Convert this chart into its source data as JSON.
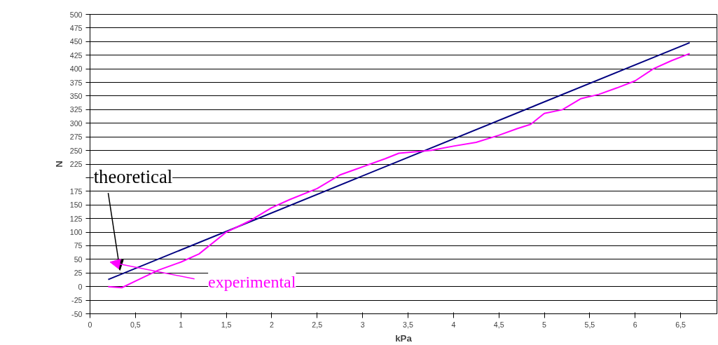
{
  "chart_data": {
    "type": "line",
    "xlabel": "kPa",
    "ylabel": "N",
    "xlim": [
      0,
      6.9
    ],
    "xticks": [
      {
        "value": 0,
        "label": "0"
      },
      {
        "value": 0.5,
        "label": "0,5"
      },
      {
        "value": 1,
        "label": "1"
      },
      {
        "value": 1.5,
        "label": "1,5"
      },
      {
        "value": 2,
        "label": "2"
      },
      {
        "value": 2.5,
        "label": "2,5"
      },
      {
        "value": 3,
        "label": "3"
      },
      {
        "value": 3.5,
        "label": "3,5"
      },
      {
        "value": 4,
        "label": "4"
      },
      {
        "value": 4.5,
        "label": "4,5"
      },
      {
        "value": 5,
        "label": "5"
      },
      {
        "value": 5.5,
        "label": "5,5"
      },
      {
        "value": 6,
        "label": "6"
      },
      {
        "value": 6.5,
        "label": "6,5"
      }
    ],
    "ylim": [
      -50,
      500
    ],
    "yticks": [
      -50,
      -25,
      0,
      25,
      50,
      75,
      100,
      125,
      150,
      175,
      {
        "value": 200,
        "label": null
      },
      225,
      250,
      275,
      300,
      325,
      350,
      375,
      400,
      425,
      450,
      475,
      500
    ],
    "grid": "y",
    "series": [
      {
        "color": "#000080",
        "x": [
          0.2,
          6.6
        ],
        "values": [
          13,
          448
        ]
      },
      {
        "color": "#ff00ff",
        "x": [
          0.2,
          0.35,
          0.5,
          0.75,
          1,
          1.2,
          1.5,
          1.75,
          2,
          2.2,
          2.5,
          2.75,
          3,
          3.25,
          3.4,
          3.75,
          4,
          4.25,
          4.5,
          4.7,
          4.85,
          5,
          5.2,
          5.4,
          5.6,
          5.8,
          6,
          6.2,
          6.4,
          6.6
        ],
        "values": [
          0,
          -2,
          10,
          30,
          45,
          60,
          100,
          120,
          145,
          160,
          180,
          205,
          220,
          235,
          245,
          250,
          258,
          265,
          278,
          290,
          298,
          318,
          325,
          345,
          353,
          365,
          378,
          400,
          415,
          428
        ]
      }
    ],
    "annotations": [
      "theoretical",
      "experimental"
    ]
  }
}
